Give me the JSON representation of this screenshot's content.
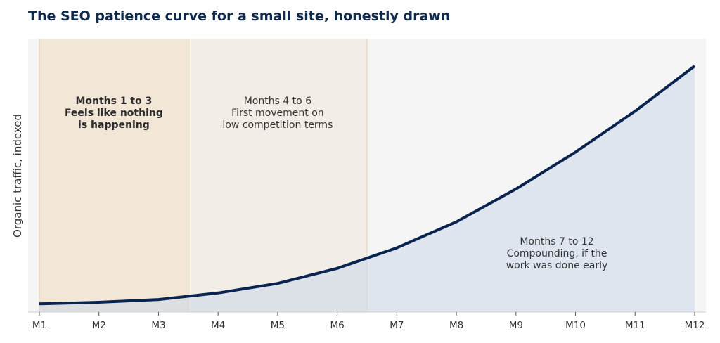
{
  "chart_data": {
    "type": "area",
    "title": "The SEO patience curve for a small site, honestly drawn",
    "xlabel": "",
    "ylabel": "Organic traffic, indexed",
    "categories": [
      "M1",
      "M2",
      "M3",
      "M4",
      "M5",
      "M6",
      "M7",
      "M8",
      "M9",
      "M10",
      "M11",
      "M12"
    ],
    "series": [
      {
        "values": [
          3,
          3.6,
          4.6,
          7,
          10.5,
          16,
          23.5,
          33,
          45,
          58.5,
          73.5,
          90
        ]
      }
    ],
    "ylim": [
      0,
      100
    ],
    "grid": false,
    "phases": [
      {
        "start": 1,
        "end": 3.5,
        "lines": [
          "Months 1 to 3",
          "Feels like nothing",
          "is happening"
        ],
        "bold": true,
        "color": "#f2e6d6"
      },
      {
        "start": 3.5,
        "end": 6.5,
        "lines": [
          "Months 4 to 6",
          "First movement on",
          "low competition terms"
        ],
        "bold": false,
        "color": "#f2ede6"
      },
      {
        "start": 6.5,
        "end": 12,
        "lines": [
          "Months 7 to 12",
          "Compounding, if the",
          "work was done early"
        ],
        "bold": false,
        "color": ""
      }
    ],
    "colors": {
      "line": "#0a2450",
      "fill": "#c7d5ea",
      "plot_bg": "#f5f5f5",
      "divider": "#e6d3b5"
    }
  }
}
